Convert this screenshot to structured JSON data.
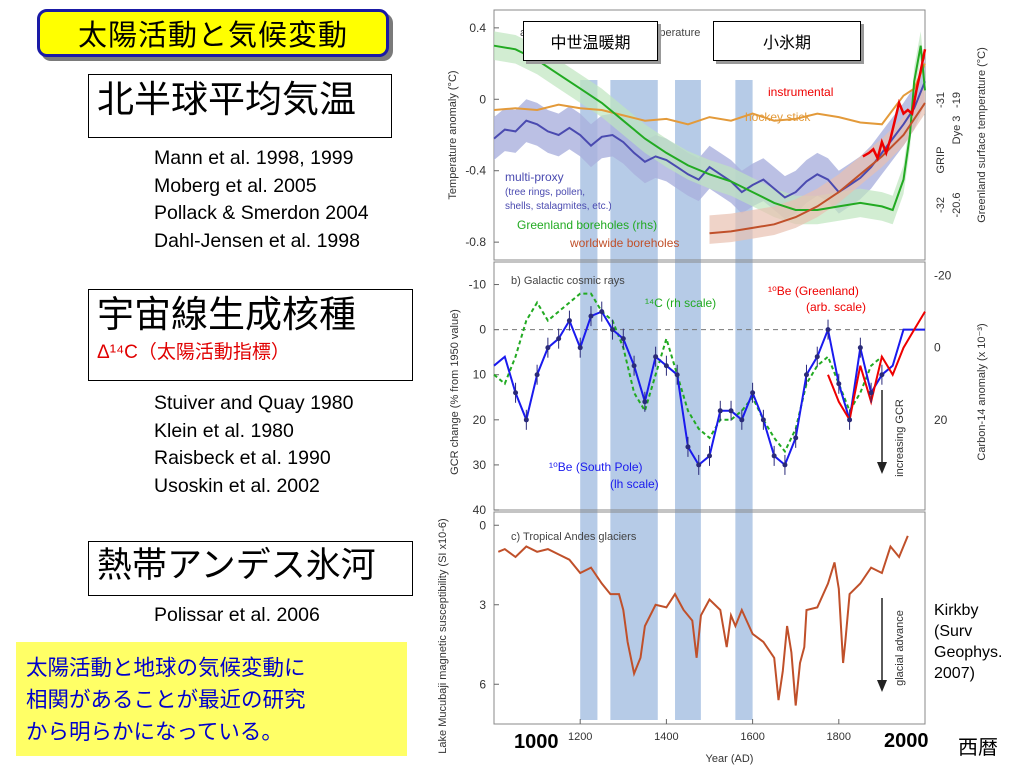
{
  "slide": {
    "title": "太陽活動と気候変動",
    "sections": [
      {
        "heading": "北半球平均気温",
        "refs": [
          "Mann et al. 1998, 1999",
          "Moberg et al. 2005",
          "Pollack & Smerdon 2004",
          "Dahl-Jensen et al. 1998"
        ]
      },
      {
        "heading": "宇宙線生成核種",
        "subheading": "Δ¹⁴C（太陽活動指標）",
        "refs": [
          "Stuiver and Quay 1980",
          "Klein et al. 1980",
          "Raisbeck et al. 1990",
          "Usoskin et al. 2002"
        ]
      },
      {
        "heading": "熱帯アンデス氷河",
        "refs": [
          "Polissar et al. 2006"
        ]
      }
    ],
    "summary": [
      "太陽活動と地球の気候変動に",
      "相関があることが最近の研究",
      "から明らかになっている。"
    ],
    "citation": [
      "Kirkby",
      "(Surv",
      "Geophys.",
      "2007)"
    ],
    "x_big_labels": {
      "start": "1000",
      "end": "2000",
      "era": "西暦"
    },
    "periods": {
      "medieval": "中世温暖期",
      "little_ice_age": "小氷期"
    }
  },
  "chart_data": [
    {
      "type": "line",
      "title": "a) Northern Hemisphere temperature",
      "xlabel": "Year (AD)",
      "ylabel": "Temperature anomaly (°C)",
      "ylabel_right": "Greenland surface temperature (°C)",
      "xlim": [
        1000,
        2000
      ],
      "ylim": [
        -0.9,
        0.5
      ],
      "yticks": [
        0.4,
        0,
        -0.4,
        -0.8
      ],
      "right_ticks": [
        {
          "label": "-31",
          "sub": "-19"
        },
        {
          "label": "-32",
          "sub": "-20.6"
        }
      ],
      "right_headers": [
        "GRIP",
        "Dye 3"
      ],
      "annotations": [
        "instrumental",
        "hockey stick",
        "multi-proxy",
        "(tree rings, pollen,",
        "shells, stalagmites, etc.)",
        "Greenland boreholes (rhs)",
        "worldwide boreholes"
      ],
      "colors": {
        "instrumental": "#ee0000",
        "hockey": "#e39a3a",
        "proxy": "#4a4ab0",
        "proxy_band": "#aab0dd",
        "greenland": "#22aa22",
        "worldwide": "#c0502a",
        "band": "#a9c2e3"
      },
      "series": [
        {
          "name": "hockey stick",
          "x": [
            1000,
            1050,
            1100,
            1150,
            1200,
            1250,
            1300,
            1350,
            1400,
            1450,
            1500,
            1550,
            1600,
            1650,
            1700,
            1750,
            1800,
            1850,
            1900,
            1925,
            1950,
            1975,
            2000
          ],
          "y": [
            -0.06,
            -0.05,
            -0.06,
            -0.03,
            -0.05,
            -0.06,
            -0.09,
            -0.12,
            -0.11,
            -0.14,
            -0.1,
            -0.12,
            -0.08,
            -0.12,
            -0.11,
            -0.08,
            -0.1,
            -0.13,
            -0.14,
            -0.06,
            0.02,
            0.06,
            0.2
          ]
        },
        {
          "name": "multi-proxy",
          "x": [
            1000,
            1025,
            1050,
            1075,
            1100,
            1125,
            1150,
            1175,
            1200,
            1225,
            1250,
            1275,
            1300,
            1325,
            1350,
            1375,
            1400,
            1425,
            1450,
            1475,
            1500,
            1525,
            1550,
            1575,
            1600,
            1625,
            1650,
            1675,
            1700,
            1725,
            1750,
            1775,
            1800,
            1825,
            1850,
            1875,
            1900,
            1925,
            1950,
            1975,
            2000
          ],
          "y": [
            -0.22,
            -0.17,
            -0.18,
            -0.12,
            -0.14,
            -0.18,
            -0.2,
            -0.16,
            -0.2,
            -0.26,
            -0.21,
            -0.2,
            -0.24,
            -0.3,
            -0.35,
            -0.32,
            -0.34,
            -0.38,
            -0.42,
            -0.45,
            -0.38,
            -0.42,
            -0.46,
            -0.52,
            -0.48,
            -0.45,
            -0.5,
            -0.55,
            -0.52,
            -0.46,
            -0.42,
            -0.45,
            -0.52,
            -0.48,
            -0.44,
            -0.38,
            -0.3,
            -0.22,
            -0.14,
            -0.05,
            0.1
          ]
        },
        {
          "name": "Greenland boreholes (rhs)",
          "x": [
            1000,
            1050,
            1100,
            1150,
            1200,
            1250,
            1300,
            1350,
            1400,
            1450,
            1500,
            1550,
            1600,
            1650,
            1700,
            1750,
            1800,
            1850,
            1900,
            1925,
            1950,
            1965,
            1975,
            1990,
            2000
          ],
          "y": [
            0.3,
            0.28,
            0.22,
            0.14,
            0.06,
            -0.02,
            -0.12,
            -0.22,
            -0.3,
            -0.37,
            -0.42,
            -0.46,
            -0.52,
            -0.58,
            -0.62,
            -0.62,
            -0.6,
            -0.58,
            -0.6,
            -0.62,
            -0.45,
            -0.2,
            0.1,
            0.3,
            0.05
          ]
        },
        {
          "name": "worldwide boreholes",
          "x": [
            1500,
            1550,
            1600,
            1650,
            1700,
            1750,
            1800,
            1850,
            1900,
            1950,
            2000
          ],
          "y": [
            -0.75,
            -0.74,
            -0.72,
            -0.7,
            -0.66,
            -0.6,
            -0.52,
            -0.42,
            -0.32,
            -0.2,
            -0.02
          ]
        },
        {
          "name": "instrumental",
          "x": [
            1856,
            1870,
            1880,
            1890,
            1900,
            1910,
            1920,
            1930,
            1940,
            1950,
            1960,
            1970,
            1980,
            1990,
            2000
          ],
          "y": [
            -0.32,
            -0.3,
            -0.28,
            -0.33,
            -0.24,
            -0.3,
            -0.22,
            -0.12,
            -0.02,
            -0.08,
            -0.06,
            -0.08,
            0.05,
            0.16,
            0.28
          ]
        }
      ]
    },
    {
      "type": "line",
      "title": "b) Galactic cosmic rays",
      "xlabel": "Year (AD)",
      "ylabel": "GCR change (% from 1950 value)",
      "ylabel_right": "Carbon-14 anomaly (x 10⁻³)",
      "xlim": [
        1000,
        2000
      ],
      "ylim": [
        -15,
        40
      ],
      "yticks": [
        -10,
        0,
        10,
        20,
        30,
        40
      ],
      "right_ticks": [
        {
          "y": -12,
          "label": "-20"
        },
        {
          "y": 4,
          "label": "0"
        },
        {
          "y": 20,
          "label": "20"
        }
      ],
      "annotations": [
        "¹⁴C (rh scale)",
        "¹⁰Be (Greenland)",
        "(arb. scale)",
        "¹⁰Be (South Pole)",
        "(lh scale)",
        "increasing GCR"
      ],
      "colors": {
        "c14": "#22aa22",
        "be_sp": "#1a1aee",
        "be_gl": "#ee0000",
        "points": "#2a2a7a",
        "band": "#a9c2e3"
      },
      "series": [
        {
          "name": "¹⁴C (rh scale)",
          "x": [
            1000,
            1025,
            1050,
            1075,
            1100,
            1125,
            1150,
            1175,
            1200,
            1225,
            1250,
            1275,
            1300,
            1325,
            1350,
            1375,
            1400,
            1425,
            1450,
            1475,
            1500,
            1525,
            1550,
            1575,
            1600,
            1625,
            1650,
            1675,
            1700,
            1725,
            1750,
            1775,
            1800,
            1825,
            1850,
            1875,
            1900
          ],
          "y": [
            10,
            12,
            6,
            -2,
            -6,
            -2,
            -4,
            -6,
            -8,
            -8,
            -4,
            -2,
            4,
            14,
            18,
            10,
            2,
            10,
            18,
            22,
            24,
            20,
            20,
            18,
            15,
            20,
            24,
            27,
            22,
            12,
            8,
            6,
            12,
            18,
            14,
            8,
            6
          ]
        },
        {
          "name": "¹⁰Be (South Pole)",
          "x": [
            1000,
            1025,
            1050,
            1075,
            1100,
            1125,
            1150,
            1175,
            1200,
            1225,
            1250,
            1275,
            1300,
            1325,
            1350,
            1375,
            1400,
            1425,
            1450,
            1475,
            1500,
            1525,
            1550,
            1575,
            1600,
            1625,
            1650,
            1675,
            1700,
            1725,
            1750,
            1775,
            1800,
            1825,
            1850,
            1875,
            1900,
            1925,
            1950,
            1975,
            2000
          ],
          "y": [
            8,
            6,
            14,
            20,
            10,
            4,
            2,
            -2,
            4,
            -3,
            -4,
            0,
            2,
            8,
            16,
            6,
            8,
            10,
            26,
            30,
            28,
            18,
            18,
            20,
            14,
            20,
            28,
            30,
            24,
            10,
            6,
            0,
            12,
            20,
            4,
            14,
            10,
            8,
            0,
            0,
            0
          ]
        },
        {
          "name": "¹⁰Be (Greenland)",
          "x": [
            1775,
            1800,
            1825,
            1850,
            1875,
            1900,
            1925,
            1950,
            1975,
            2000
          ],
          "y": [
            10,
            16,
            20,
            8,
            16,
            6,
            10,
            4,
            0,
            -4
          ]
        }
      ]
    },
    {
      "type": "line",
      "title": "c) Tropical Andes glaciers",
      "xlabel": "Year (AD)",
      "ylabel": "Lake Mucubaji magnetic susceptibility (SI x10-6)",
      "xlim": [
        1000,
        2000
      ],
      "ylim": [
        -0.5,
        7.5
      ],
      "yticks": [
        0,
        3,
        6
      ],
      "xticks": [
        1200,
        1400,
        1600,
        1800
      ],
      "annotations": [
        "glacial advance"
      ],
      "colors": {
        "line": "#c0502a",
        "band": "#a9c2e3"
      },
      "series": [
        {
          "name": "Lake Mucubaji magnetic susceptibility",
          "x": [
            1010,
            1025,
            1050,
            1075,
            1100,
            1125,
            1150,
            1175,
            1200,
            1225,
            1250,
            1270,
            1290,
            1300,
            1310,
            1325,
            1340,
            1350,
            1375,
            1400,
            1420,
            1440,
            1460,
            1470,
            1480,
            1500,
            1525,
            1540,
            1550,
            1560,
            1575,
            1600,
            1625,
            1650,
            1660,
            1670,
            1680,
            1690,
            1700,
            1710,
            1720,
            1725,
            1750,
            1775,
            1790,
            1800,
            1810,
            1815,
            1825,
            1850,
            1875,
            1900,
            1920,
            1940,
            1960
          ],
          "y": [
            1,
            0.9,
            1.2,
            0.8,
            1,
            0.9,
            1.1,
            1.3,
            1.8,
            1.6,
            2.2,
            2.6,
            2.6,
            3.2,
            4.4,
            5.6,
            5,
            3.8,
            3,
            3.1,
            2.6,
            3.2,
            3.6,
            5,
            3.4,
            2.8,
            3.2,
            4.6,
            3.4,
            3.8,
            3.2,
            4.1,
            4.4,
            5,
            6.6,
            5.5,
            3.8,
            4.8,
            6.8,
            5.2,
            4.6,
            3.2,
            3.1,
            2.2,
            1.4,
            2.4,
            5.2,
            4.4,
            2.6,
            2.2,
            1.6,
            1.8,
            0.8,
            1.2,
            0.4
          ]
        }
      ]
    }
  ]
}
